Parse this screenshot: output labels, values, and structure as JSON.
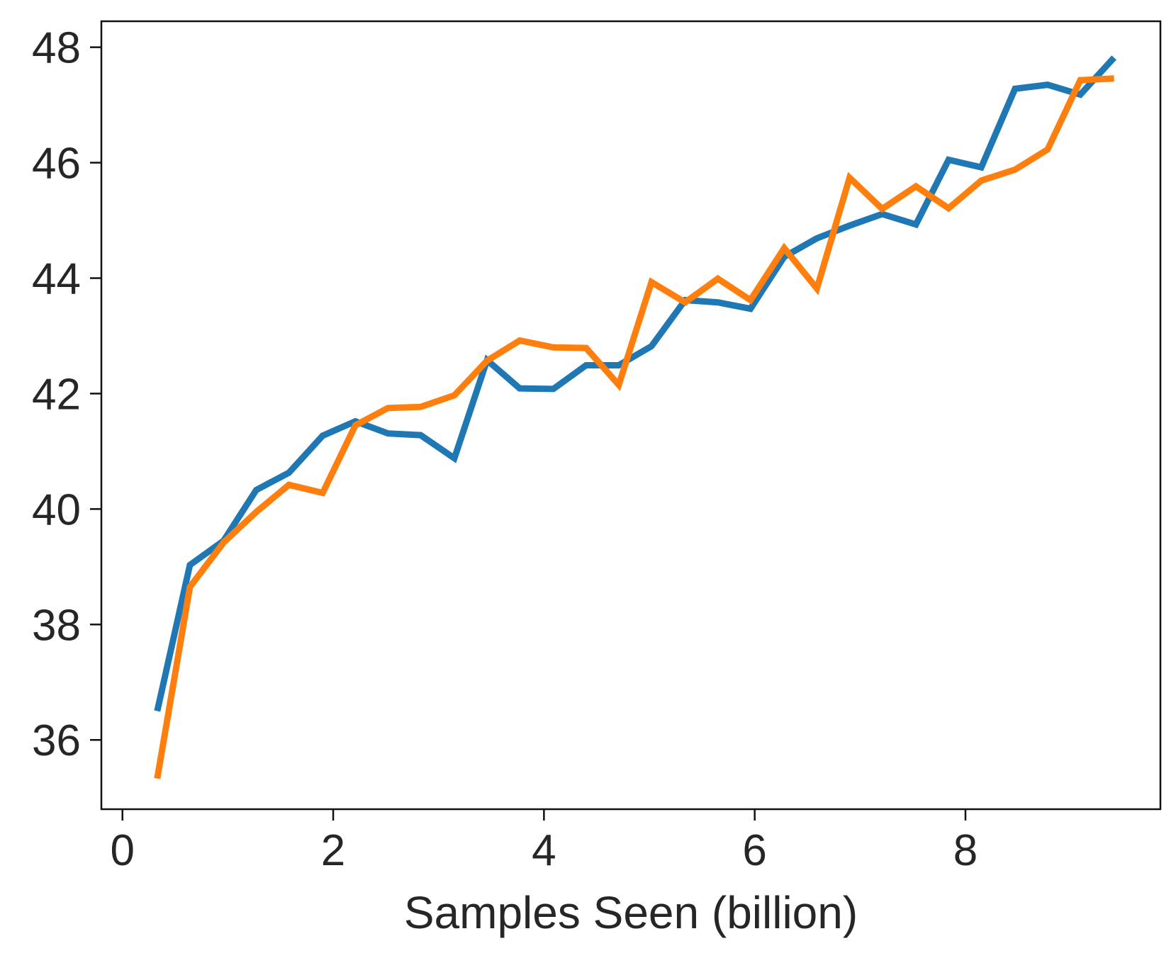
{
  "chart_data": {
    "type": "line",
    "title": "",
    "xlabel": "Samples Seen (billion)",
    "ylabel": "",
    "xlim": [
      -0.2,
      9.85
    ],
    "ylim": [
      34.8,
      48.45
    ],
    "grid": false,
    "legend": "none",
    "xticks": [
      0,
      2,
      4,
      6,
      8
    ],
    "yticks": [
      36,
      38,
      40,
      42,
      44,
      46,
      48
    ],
    "xtick_labels": [
      "0",
      "2",
      "4",
      "6",
      "8"
    ],
    "ytick_labels": [
      "36",
      "38",
      "40",
      "42",
      "44",
      "46",
      "48"
    ],
    "x": [
      0.33,
      0.64,
      0.96,
      1.27,
      1.58,
      1.9,
      2.21,
      2.52,
      2.83,
      3.15,
      3.46,
      3.77,
      4.09,
      4.4,
      4.71,
      5.02,
      5.34,
      5.65,
      5.96,
      6.28,
      6.59,
      6.9,
      7.21,
      7.53,
      7.84,
      8.15,
      8.47,
      8.78,
      9.09,
      9.41
    ],
    "series": [
      {
        "color": "#1f77b4",
        "values": [
          36.5,
          39.03,
          39.45,
          40.33,
          40.63,
          41.27,
          41.52,
          41.31,
          41.28,
          40.88,
          42.58,
          42.09,
          42.08,
          42.49,
          42.49,
          42.82,
          43.62,
          43.58,
          43.47,
          44.37,
          44.69,
          44.91,
          45.11,
          44.93,
          46.05,
          45.92,
          47.28,
          47.35,
          47.18,
          47.82
        ]
      },
      {
        "color": "#ff7f0e",
        "values": [
          35.33,
          38.65,
          39.42,
          39.95,
          40.42,
          40.28,
          41.45,
          41.75,
          41.77,
          41.97,
          42.57,
          42.92,
          42.8,
          42.79,
          42.15,
          43.93,
          43.58,
          43.99,
          43.62,
          44.52,
          43.82,
          45.74,
          45.2,
          45.59,
          45.21,
          45.69,
          45.88,
          46.23,
          47.43,
          47.46
        ]
      }
    ]
  }
}
